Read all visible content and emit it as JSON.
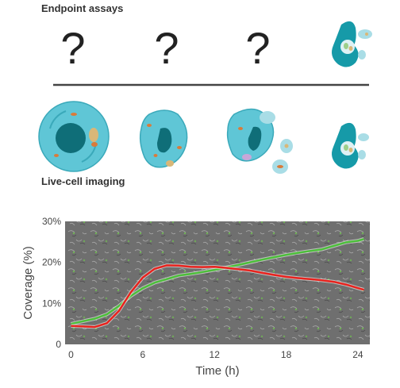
{
  "sections": {
    "endpoint_label": "Endpoint assays",
    "live_label": "Live-cell imaging",
    "unknown_mark": "?"
  },
  "colors": {
    "cell": "#5fc6d6",
    "cell_dark": "#1f8f9e",
    "nucleus": "#0f6e78",
    "teal_body": "#169aa8",
    "organelle_orange": "#d97b3a",
    "organelle_tan": "#d9b778",
    "vesicle_pink": "#c8a6d8",
    "vesicle_light": "#a9dde6",
    "divider": "#444444",
    "line_green": "#4cbf3a",
    "line_red": "#e8231e"
  },
  "chart_data": {
    "type": "line",
    "xlabel": "Time (h)",
    "ylabel": "Coverage (%)",
    "xlim": [
      -0.5,
      25
    ],
    "ylim": [
      0,
      30
    ],
    "x_ticks": [
      "0",
      "6",
      "12",
      "18",
      "24"
    ],
    "y_ticks": [
      "0",
      "10%",
      "20%",
      "30%"
    ],
    "grid": false,
    "background": "phase-contrast micrograph",
    "series": [
      {
        "color": "#4cbf3a",
        "x": [
          0,
          1,
          2,
          3,
          4,
          5,
          6,
          7,
          8,
          9,
          10,
          11,
          12,
          13,
          14,
          15,
          16,
          17,
          18,
          19,
          20,
          21,
          22,
          23,
          24,
          24.5
        ],
        "y": [
          5,
          5.5,
          6,
          7,
          9,
          11.5,
          13.5,
          15,
          16,
          17,
          17.5,
          18,
          18.5,
          19,
          19.5,
          20,
          20.5,
          21,
          21.5,
          22,
          22.5,
          23,
          24,
          25,
          25.5,
          26
        ]
      },
      {
        "color": "#e8231e",
        "x": [
          0,
          1,
          2,
          3,
          4,
          5,
          6,
          7,
          8,
          9,
          10,
          11,
          12,
          13,
          14,
          15,
          16,
          17,
          18,
          19,
          20,
          21,
          22,
          23,
          24,
          24.5
        ],
        "y": [
          4.5,
          4.5,
          4.5,
          5.5,
          8.5,
          13,
          16.5,
          18.5,
          19.2,
          19,
          18.6,
          18.5,
          18.6,
          18.4,
          18.2,
          18,
          17.6,
          17.2,
          16.8,
          16.5,
          16.2,
          15.8,
          15.3,
          14.5,
          13.5,
          13
        ]
      }
    ]
  }
}
